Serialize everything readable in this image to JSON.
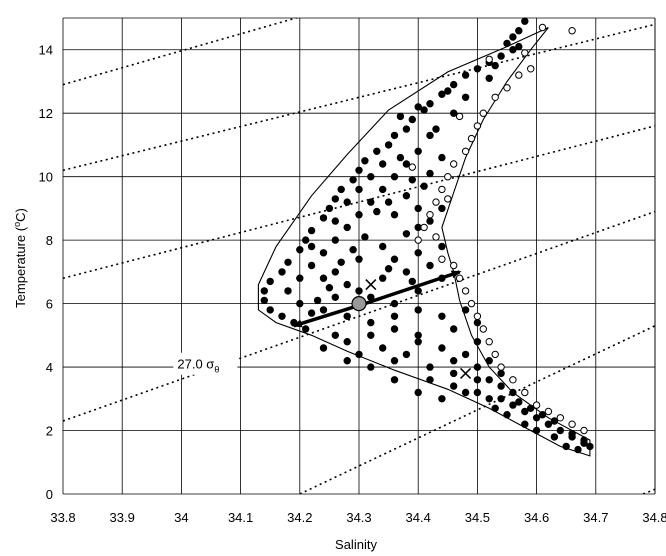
{
  "chart_data": {
    "type": "scatter",
    "xlabel": "Salinity",
    "ylabel": "Temperature (°C)",
    "ylabel_parts": {
      "main": "Temperature (",
      "sup": "o",
      "end": "C)"
    },
    "xlim": [
      33.8,
      34.8
    ],
    "ylim": [
      0,
      15
    ],
    "x_ticks": [
      "33.8",
      "33.9",
      "34",
      "34.1",
      "34.2",
      "34.3",
      "34.4",
      "34.5",
      "34.6",
      "34.7",
      "34.8"
    ],
    "y_ticks": [
      "0",
      "2",
      "4",
      "6",
      "8",
      "10",
      "12",
      "14"
    ],
    "grid": true,
    "annotation": {
      "text": "27.0 σ",
      "sub": "θ",
      "x": 34.0,
      "y": 4.2
    },
    "isopycnals": [
      {
        "x1": 33.8,
        "y1": 12.9,
        "x2": 34.25,
        "y2": 15.3
      },
      {
        "x1": 33.8,
        "y1": 10.2,
        "x2": 34.8,
        "y2": 14.8
      },
      {
        "x1": 33.8,
        "y1": 6.8,
        "x2": 34.8,
        "y2": 11.6
      },
      {
        "x1": 33.8,
        "y1": 2.3,
        "x2": 34.8,
        "y2": 8.9
      },
      {
        "x1": 34.2,
        "y1": 0.0,
        "x2": 34.8,
        "y2": 5.3
      },
      {
        "x1": 34.78,
        "y1": 0.0,
        "x2": 34.8,
        "y2": 0.15
      }
    ],
    "envelope": [
      [
        34.62,
        14.7
      ],
      [
        34.55,
        14.1
      ],
      [
        34.45,
        13.3
      ],
      [
        34.35,
        12.1
      ],
      [
        34.28,
        10.7
      ],
      [
        34.22,
        9.4
      ],
      [
        34.16,
        7.8
      ],
      [
        34.13,
        6.6
      ],
      [
        34.13,
        5.8
      ],
      [
        34.16,
        5.4
      ],
      [
        34.22,
        5.0
      ],
      [
        34.28,
        4.5
      ],
      [
        34.36,
        3.9
      ],
      [
        34.45,
        3.3
      ],
      [
        34.52,
        2.7
      ],
      [
        34.58,
        2.1
      ],
      [
        34.64,
        1.5
      ],
      [
        34.69,
        1.2
      ],
      [
        34.69,
        1.7
      ],
      [
        34.62,
        2.4
      ],
      [
        34.56,
        3.2
      ],
      [
        34.52,
        4.0
      ],
      [
        34.49,
        5.0
      ],
      [
        34.47,
        6.1
      ],
      [
        34.46,
        7.0
      ],
      [
        34.45,
        7.6
      ],
      [
        34.44,
        8.4
      ],
      [
        34.46,
        9.5
      ],
      [
        34.48,
        10.6
      ],
      [
        34.51,
        11.8
      ],
      [
        34.55,
        13.0
      ],
      [
        34.59,
        14.0
      ],
      [
        34.62,
        14.7
      ]
    ],
    "arrows": [
      {
        "x1": 34.31,
        "y1": 6.0,
        "x2": 34.19,
        "y2": 5.3
      },
      {
        "x1": 34.31,
        "y1": 6.0,
        "x2": 34.47,
        "y2": 7.0
      }
    ],
    "center_marker": {
      "x": 34.3,
      "y": 6.0
    },
    "cross_marker": {
      "x": 34.32,
      "y": 6.6
    },
    "cross_marker_2": {
      "x": 34.48,
      "y": 3.8
    },
    "series": [
      {
        "name": "",
        "style": "filled",
        "points": [
          [
            34.58,
            14.9
          ],
          [
            34.57,
            14.6
          ],
          [
            34.56,
            14.4
          ],
          [
            34.55,
            14.2
          ],
          [
            34.57,
            14.1
          ],
          [
            34.54,
            13.8
          ],
          [
            34.52,
            13.6
          ],
          [
            34.5,
            13.4
          ],
          [
            34.48,
            13.2
          ],
          [
            34.53,
            13.5
          ],
          [
            34.46,
            12.9
          ],
          [
            34.44,
            12.6
          ],
          [
            34.42,
            12.3
          ],
          [
            34.41,
            12.1
          ],
          [
            34.45,
            12.7
          ],
          [
            34.39,
            11.8
          ],
          [
            34.38,
            11.5
          ],
          [
            34.36,
            11.3
          ],
          [
            34.35,
            11.0
          ],
          [
            34.33,
            10.8
          ],
          [
            34.37,
            11.9
          ],
          [
            34.31,
            10.5
          ],
          [
            34.3,
            10.2
          ],
          [
            34.29,
            9.9
          ],
          [
            34.27,
            9.6
          ],
          [
            34.26,
            9.3
          ],
          [
            34.25,
            9.0
          ],
          [
            34.24,
            8.7
          ],
          [
            34.22,
            8.3
          ],
          [
            34.21,
            8.0
          ],
          [
            34.2,
            7.7
          ],
          [
            34.18,
            7.3
          ],
          [
            34.17,
            7.0
          ],
          [
            34.15,
            6.7
          ],
          [
            34.14,
            6.4
          ],
          [
            34.14,
            6.1
          ],
          [
            34.15,
            5.8
          ],
          [
            34.17,
            5.6
          ],
          [
            34.19,
            5.4
          ],
          [
            34.21,
            5.2
          ],
          [
            34.4,
            12.2
          ],
          [
            34.42,
            11.3
          ],
          [
            34.4,
            10.8
          ],
          [
            34.38,
            10.4
          ],
          [
            34.36,
            10.0
          ],
          [
            34.34,
            9.6
          ],
          [
            34.32,
            9.2
          ],
          [
            34.3,
            8.8
          ],
          [
            34.28,
            8.4
          ],
          [
            34.26,
            8.0
          ],
          [
            34.24,
            7.6
          ],
          [
            34.22,
            7.2
          ],
          [
            34.2,
            6.8
          ],
          [
            34.18,
            6.4
          ],
          [
            34.2,
            6.0
          ],
          [
            34.24,
            5.8
          ],
          [
            34.28,
            5.6
          ],
          [
            34.32,
            5.4
          ],
          [
            34.36,
            5.2
          ],
          [
            34.4,
            5.0
          ],
          [
            34.38,
            9.4
          ],
          [
            34.4,
            9.0
          ],
          [
            34.42,
            8.6
          ],
          [
            34.38,
            8.2
          ],
          [
            34.34,
            7.8
          ],
          [
            34.3,
            7.4
          ],
          [
            34.26,
            7.0
          ],
          [
            34.28,
            6.6
          ],
          [
            34.32,
            6.2
          ],
          [
            34.36,
            6.0
          ],
          [
            34.4,
            6.4
          ],
          [
            34.44,
            6.8
          ],
          [
            34.42,
            7.2
          ],
          [
            34.38,
            7.0
          ],
          [
            34.34,
            6.8
          ],
          [
            34.3,
            6.4
          ],
          [
            34.26,
            6.2
          ],
          [
            34.24,
            6.8
          ],
          [
            34.44,
            7.8
          ],
          [
            34.4,
            7.6
          ],
          [
            34.36,
            8.8
          ],
          [
            34.32,
            10.0
          ],
          [
            34.34,
            10.4
          ],
          [
            34.3,
            9.6
          ],
          [
            34.28,
            9.2
          ],
          [
            34.26,
            8.6
          ],
          [
            34.22,
            7.8
          ],
          [
            34.4,
            8.4
          ],
          [
            34.44,
            9.0
          ],
          [
            34.36,
            7.4
          ],
          [
            34.32,
            5.0
          ],
          [
            34.28,
            4.8
          ],
          [
            34.24,
            4.6
          ],
          [
            34.3,
            4.4
          ],
          [
            34.36,
            4.2
          ],
          [
            34.42,
            4.0
          ],
          [
            34.46,
            3.8
          ],
          [
            34.5,
            3.6
          ],
          [
            34.54,
            3.4
          ],
          [
            34.48,
            4.4
          ],
          [
            34.44,
            4.6
          ],
          [
            34.4,
            4.8
          ],
          [
            34.46,
            5.2
          ],
          [
            34.5,
            5.4
          ],
          [
            34.48,
            5.8
          ],
          [
            34.44,
            5.6
          ],
          [
            34.4,
            5.8
          ],
          [
            34.36,
            5.6
          ],
          [
            34.34,
            4.6
          ],
          [
            34.38,
            4.4
          ],
          [
            34.52,
            4.2
          ],
          [
            34.5,
            4.8
          ],
          [
            34.46,
            4.2
          ],
          [
            34.42,
            3.6
          ],
          [
            34.46,
            3.4
          ],
          [
            34.5,
            3.2
          ],
          [
            34.54,
            3.0
          ],
          [
            34.56,
            2.8
          ],
          [
            34.58,
            2.6
          ],
          [
            34.56,
            3.2
          ],
          [
            34.6,
            2.4
          ],
          [
            34.62,
            2.2
          ],
          [
            34.64,
            2.0
          ],
          [
            34.66,
            1.8
          ],
          [
            34.68,
            1.6
          ],
          [
            34.67,
            1.4
          ],
          [
            34.65,
            1.5
          ],
          [
            34.63,
            1.8
          ],
          [
            34.6,
            2.0
          ],
          [
            34.58,
            2.2
          ],
          [
            34.55,
            2.5
          ],
          [
            34.53,
            2.7
          ],
          [
            34.52,
            3.0
          ],
          [
            34.57,
            2.9
          ],
          [
            34.59,
            2.7
          ],
          [
            34.61,
            2.5
          ],
          [
            34.63,
            2.3
          ],
          [
            34.66,
            1.9
          ],
          [
            34.68,
            1.7
          ],
          [
            34.69,
            1.5
          ],
          [
            34.54,
            3.8
          ],
          [
            34.52,
            3.6
          ],
          [
            34.5,
            4.0
          ],
          [
            34.48,
            3.2
          ],
          [
            34.44,
            3.0
          ],
          [
            34.4,
            3.2
          ],
          [
            34.36,
            3.6
          ],
          [
            34.32,
            4.0
          ],
          [
            34.28,
            4.2
          ],
          [
            34.26,
            5.0
          ],
          [
            34.56,
            14.0
          ],
          [
            34.52,
            13.1
          ],
          [
            34.48,
            12.5
          ],
          [
            34.46,
            12.0
          ],
          [
            34.43,
            11.5
          ],
          [
            34.44,
            10.6
          ],
          [
            34.42,
            10.1
          ],
          [
            34.41,
            9.7
          ],
          [
            34.39,
            9.9
          ],
          [
            34.37,
            10.6
          ],
          [
            34.35,
            9.2
          ],
          [
            34.33,
            8.9
          ],
          [
            34.31,
            8.1
          ],
          [
            34.29,
            7.7
          ],
          [
            34.27,
            7.3
          ],
          [
            34.25,
            6.5
          ],
          [
            34.23,
            6.1
          ],
          [
            34.22,
            5.7
          ],
          [
            34.35,
            7.1
          ],
          [
            34.39,
            6.7
          ]
        ]
      },
      {
        "name": "",
        "style": "open",
        "points": [
          [
            34.61,
            14.7
          ],
          [
            34.66,
            14.6
          ],
          [
            34.58,
            13.9
          ],
          [
            34.59,
            13.4
          ],
          [
            34.57,
            13.2
          ],
          [
            34.55,
            12.8
          ],
          [
            34.53,
            12.5
          ],
          [
            34.51,
            12.0
          ],
          [
            34.5,
            11.6
          ],
          [
            34.49,
            11.2
          ],
          [
            34.48,
            10.8
          ],
          [
            34.46,
            10.4
          ],
          [
            34.45,
            10.0
          ],
          [
            34.44,
            9.6
          ],
          [
            34.43,
            9.2
          ],
          [
            34.42,
            8.8
          ],
          [
            34.41,
            8.4
          ],
          [
            34.4,
            8.0
          ],
          [
            34.44,
            7.4
          ],
          [
            34.46,
            7.2
          ],
          [
            34.47,
            6.8
          ],
          [
            34.48,
            6.4
          ],
          [
            34.49,
            6.0
          ],
          [
            34.5,
            5.6
          ],
          [
            34.51,
            5.2
          ],
          [
            34.52,
            4.8
          ],
          [
            34.53,
            4.4
          ],
          [
            34.54,
            4.0
          ],
          [
            34.56,
            3.6
          ],
          [
            34.58,
            3.2
          ],
          [
            34.6,
            2.8
          ],
          [
            34.62,
            2.6
          ],
          [
            34.64,
            2.4
          ],
          [
            34.66,
            2.2
          ],
          [
            34.68,
            2.0
          ],
          [
            34.39,
            10.3
          ],
          [
            34.43,
            8.1
          ],
          [
            34.45,
            9.3
          ],
          [
            34.47,
            11.9
          ],
          [
            34.52,
            13.7
          ]
        ]
      }
    ]
  }
}
